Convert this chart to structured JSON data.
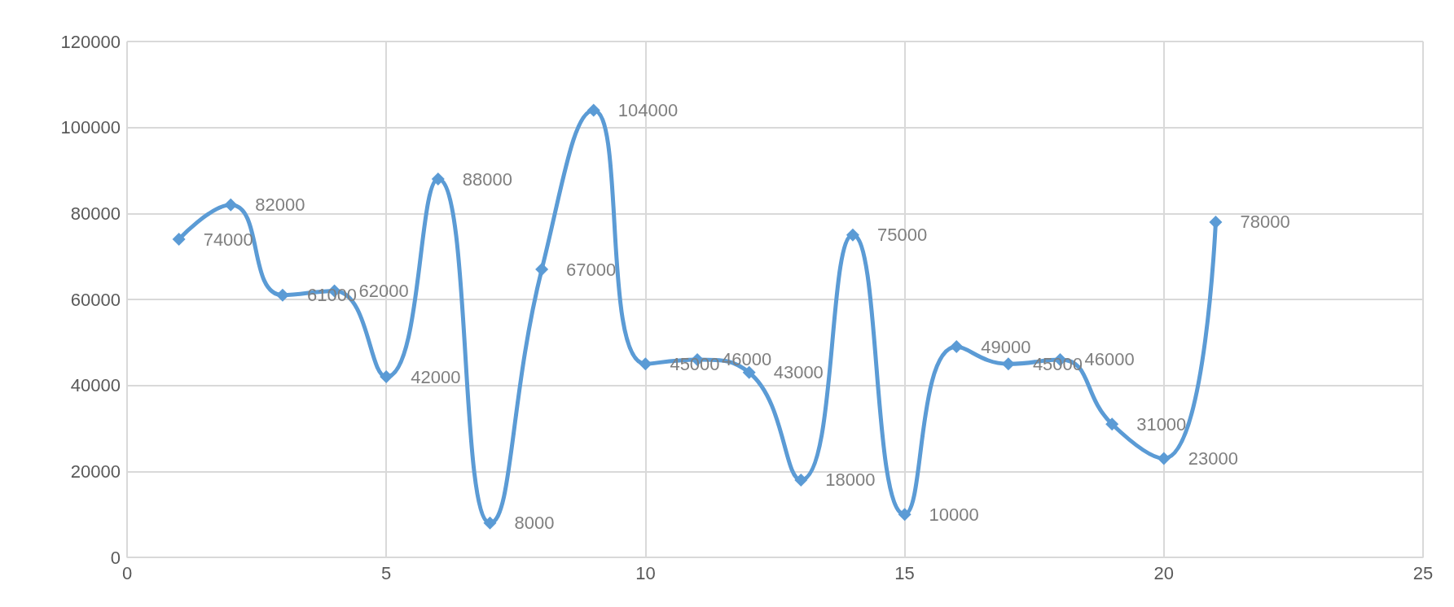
{
  "chart_data": {
    "type": "line",
    "x": [
      1,
      2,
      3,
      4,
      5,
      6,
      7,
      8,
      9,
      10,
      11,
      12,
      13,
      14,
      15,
      16,
      17,
      18,
      19,
      20,
      21
    ],
    "values": [
      74000,
      82000,
      61000,
      62000,
      42000,
      88000,
      8000,
      67000,
      104000,
      45000,
      46000,
      43000,
      18000,
      75000,
      10000,
      49000,
      45000,
      46000,
      31000,
      23000,
      78000
    ],
    "color": "#5b9bd5",
    "xlim": [
      0,
      25
    ],
    "xticks": [
      0,
      5,
      10,
      15,
      20,
      25
    ],
    "ylim": [
      0,
      120000
    ],
    "yticks": [
      0,
      20000,
      40000,
      60000,
      80000,
      100000,
      120000
    ],
    "grid": true,
    "marker": "diamond",
    "data_labels": true
  }
}
